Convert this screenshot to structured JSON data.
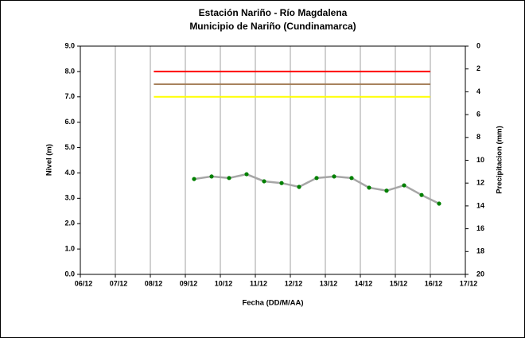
{
  "chart_data": {
    "type": "line",
    "title": "Estación Nariño  - Río Magdalena",
    "subtitle": "Municipio de Nariño (Cundinamarca)",
    "x_label": "Fecha (DD/M/AA)",
    "y_label": "Nivel (m)",
    "y2_label": "Precipitacion (mm)",
    "xlim": [
      6,
      17
    ],
    "xticks": [
      {
        "value": 6,
        "label": "06/12"
      },
      {
        "value": 7,
        "label": "07/12"
      },
      {
        "value": 8,
        "label": "08/12"
      },
      {
        "value": 9,
        "label": "09/12"
      },
      {
        "value": 10,
        "label": "10/12"
      },
      {
        "value": 11,
        "label": "11/12"
      },
      {
        "value": 12,
        "label": "12/12"
      },
      {
        "value": 13,
        "label": "13/12"
      },
      {
        "value": 14,
        "label": "14/12"
      },
      {
        "value": 15,
        "label": "15/12"
      },
      {
        "value": 16,
        "label": "16/12"
      },
      {
        "value": 17,
        "label": "17/12"
      }
    ],
    "ylim": [
      0,
      9
    ],
    "yticks": [
      {
        "value": 0,
        "label": "0.0"
      },
      {
        "value": 1,
        "label": "1.0"
      },
      {
        "value": 2,
        "label": "2.0"
      },
      {
        "value": 3,
        "label": "3.0"
      },
      {
        "value": 4,
        "label": "4.0"
      },
      {
        "value": 5,
        "label": "5.0"
      },
      {
        "value": 6,
        "label": "6.0"
      },
      {
        "value": 7,
        "label": "7.0"
      },
      {
        "value": 8,
        "label": "8.0"
      },
      {
        "value": 9,
        "label": "9.0"
      }
    ],
    "y2lim": [
      0,
      20
    ],
    "y2_inverted": true,
    "y2ticks": [
      0,
      2,
      4,
      6,
      8,
      10,
      12,
      14,
      16,
      18,
      20
    ],
    "xgrid": true,
    "series": [
      {
        "color": "#ff0000",
        "x": [
          8.1,
          16
        ],
        "values": [
          8,
          8
        ]
      },
      {
        "color": "#a07850",
        "x": [
          8.1,
          16
        ],
        "values": [
          7.5,
          7.5
        ]
      },
      {
        "color": "#ffff00",
        "x": [
          8.1,
          16
        ],
        "values": [
          7,
          7
        ]
      },
      {
        "color": "#a6a6a6",
        "marker_color": "#008000",
        "markers": true,
        "x": [
          9.25,
          9.75,
          10.25,
          10.75,
          11.25,
          11.75,
          12.25,
          12.75,
          13.25,
          13.75,
          14.25,
          14.75,
          15.25,
          15.75,
          16.25
        ],
        "values": [
          3.76,
          3.86,
          3.8,
          3.95,
          3.67,
          3.6,
          3.45,
          3.8,
          3.86,
          3.8,
          3.42,
          3.3,
          3.51,
          3.13,
          2.79
        ]
      }
    ]
  }
}
